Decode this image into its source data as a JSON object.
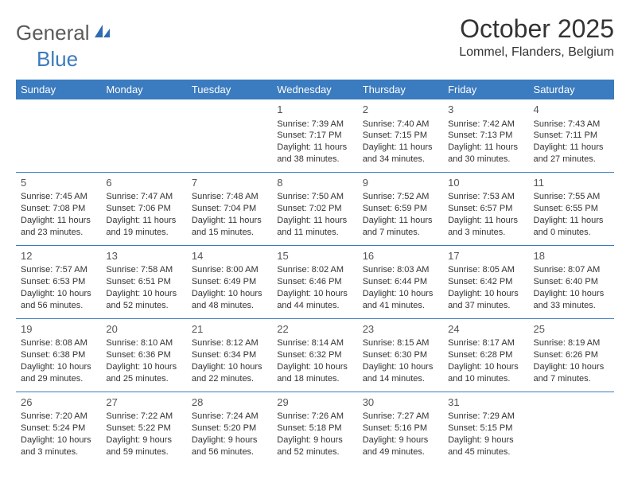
{
  "brand": {
    "part1": "General",
    "part2": "Blue"
  },
  "title": "October 2025",
  "location": "Lommel, Flanders, Belgium",
  "colors": {
    "header_bg": "#3b7bbf",
    "divider": "#3b7bbf"
  },
  "weekdays": [
    "Sunday",
    "Monday",
    "Tuesday",
    "Wednesday",
    "Thursday",
    "Friday",
    "Saturday"
  ],
  "weeks": [
    [
      null,
      null,
      null,
      {
        "d": "1",
        "sr": "Sunrise: 7:39 AM",
        "ss": "Sunset: 7:17 PM",
        "dl1": "Daylight: 11 hours",
        "dl2": "and 38 minutes."
      },
      {
        "d": "2",
        "sr": "Sunrise: 7:40 AM",
        "ss": "Sunset: 7:15 PM",
        "dl1": "Daylight: 11 hours",
        "dl2": "and 34 minutes."
      },
      {
        "d": "3",
        "sr": "Sunrise: 7:42 AM",
        "ss": "Sunset: 7:13 PM",
        "dl1": "Daylight: 11 hours",
        "dl2": "and 30 minutes."
      },
      {
        "d": "4",
        "sr": "Sunrise: 7:43 AM",
        "ss": "Sunset: 7:11 PM",
        "dl1": "Daylight: 11 hours",
        "dl2": "and 27 minutes."
      }
    ],
    [
      {
        "d": "5",
        "sr": "Sunrise: 7:45 AM",
        "ss": "Sunset: 7:08 PM",
        "dl1": "Daylight: 11 hours",
        "dl2": "and 23 minutes."
      },
      {
        "d": "6",
        "sr": "Sunrise: 7:47 AM",
        "ss": "Sunset: 7:06 PM",
        "dl1": "Daylight: 11 hours",
        "dl2": "and 19 minutes."
      },
      {
        "d": "7",
        "sr": "Sunrise: 7:48 AM",
        "ss": "Sunset: 7:04 PM",
        "dl1": "Daylight: 11 hours",
        "dl2": "and 15 minutes."
      },
      {
        "d": "8",
        "sr": "Sunrise: 7:50 AM",
        "ss": "Sunset: 7:02 PM",
        "dl1": "Daylight: 11 hours",
        "dl2": "and 11 minutes."
      },
      {
        "d": "9",
        "sr": "Sunrise: 7:52 AM",
        "ss": "Sunset: 6:59 PM",
        "dl1": "Daylight: 11 hours",
        "dl2": "and 7 minutes."
      },
      {
        "d": "10",
        "sr": "Sunrise: 7:53 AM",
        "ss": "Sunset: 6:57 PM",
        "dl1": "Daylight: 11 hours",
        "dl2": "and 3 minutes."
      },
      {
        "d": "11",
        "sr": "Sunrise: 7:55 AM",
        "ss": "Sunset: 6:55 PM",
        "dl1": "Daylight: 11 hours",
        "dl2": "and 0 minutes."
      }
    ],
    [
      {
        "d": "12",
        "sr": "Sunrise: 7:57 AM",
        "ss": "Sunset: 6:53 PM",
        "dl1": "Daylight: 10 hours",
        "dl2": "and 56 minutes."
      },
      {
        "d": "13",
        "sr": "Sunrise: 7:58 AM",
        "ss": "Sunset: 6:51 PM",
        "dl1": "Daylight: 10 hours",
        "dl2": "and 52 minutes."
      },
      {
        "d": "14",
        "sr": "Sunrise: 8:00 AM",
        "ss": "Sunset: 6:49 PM",
        "dl1": "Daylight: 10 hours",
        "dl2": "and 48 minutes."
      },
      {
        "d": "15",
        "sr": "Sunrise: 8:02 AM",
        "ss": "Sunset: 6:46 PM",
        "dl1": "Daylight: 10 hours",
        "dl2": "and 44 minutes."
      },
      {
        "d": "16",
        "sr": "Sunrise: 8:03 AM",
        "ss": "Sunset: 6:44 PM",
        "dl1": "Daylight: 10 hours",
        "dl2": "and 41 minutes."
      },
      {
        "d": "17",
        "sr": "Sunrise: 8:05 AM",
        "ss": "Sunset: 6:42 PM",
        "dl1": "Daylight: 10 hours",
        "dl2": "and 37 minutes."
      },
      {
        "d": "18",
        "sr": "Sunrise: 8:07 AM",
        "ss": "Sunset: 6:40 PM",
        "dl1": "Daylight: 10 hours",
        "dl2": "and 33 minutes."
      }
    ],
    [
      {
        "d": "19",
        "sr": "Sunrise: 8:08 AM",
        "ss": "Sunset: 6:38 PM",
        "dl1": "Daylight: 10 hours",
        "dl2": "and 29 minutes."
      },
      {
        "d": "20",
        "sr": "Sunrise: 8:10 AM",
        "ss": "Sunset: 6:36 PM",
        "dl1": "Daylight: 10 hours",
        "dl2": "and 25 minutes."
      },
      {
        "d": "21",
        "sr": "Sunrise: 8:12 AM",
        "ss": "Sunset: 6:34 PM",
        "dl1": "Daylight: 10 hours",
        "dl2": "and 22 minutes."
      },
      {
        "d": "22",
        "sr": "Sunrise: 8:14 AM",
        "ss": "Sunset: 6:32 PM",
        "dl1": "Daylight: 10 hours",
        "dl2": "and 18 minutes."
      },
      {
        "d": "23",
        "sr": "Sunrise: 8:15 AM",
        "ss": "Sunset: 6:30 PM",
        "dl1": "Daylight: 10 hours",
        "dl2": "and 14 minutes."
      },
      {
        "d": "24",
        "sr": "Sunrise: 8:17 AM",
        "ss": "Sunset: 6:28 PM",
        "dl1": "Daylight: 10 hours",
        "dl2": "and 10 minutes."
      },
      {
        "d": "25",
        "sr": "Sunrise: 8:19 AM",
        "ss": "Sunset: 6:26 PM",
        "dl1": "Daylight: 10 hours",
        "dl2": "and 7 minutes."
      }
    ],
    [
      {
        "d": "26",
        "sr": "Sunrise: 7:20 AM",
        "ss": "Sunset: 5:24 PM",
        "dl1": "Daylight: 10 hours",
        "dl2": "and 3 minutes."
      },
      {
        "d": "27",
        "sr": "Sunrise: 7:22 AM",
        "ss": "Sunset: 5:22 PM",
        "dl1": "Daylight: 9 hours",
        "dl2": "and 59 minutes."
      },
      {
        "d": "28",
        "sr": "Sunrise: 7:24 AM",
        "ss": "Sunset: 5:20 PM",
        "dl1": "Daylight: 9 hours",
        "dl2": "and 56 minutes."
      },
      {
        "d": "29",
        "sr": "Sunrise: 7:26 AM",
        "ss": "Sunset: 5:18 PM",
        "dl1": "Daylight: 9 hours",
        "dl2": "and 52 minutes."
      },
      {
        "d": "30",
        "sr": "Sunrise: 7:27 AM",
        "ss": "Sunset: 5:16 PM",
        "dl1": "Daylight: 9 hours",
        "dl2": "and 49 minutes."
      },
      {
        "d": "31",
        "sr": "Sunrise: 7:29 AM",
        "ss": "Sunset: 5:15 PM",
        "dl1": "Daylight: 9 hours",
        "dl2": "and 45 minutes."
      },
      null
    ]
  ]
}
